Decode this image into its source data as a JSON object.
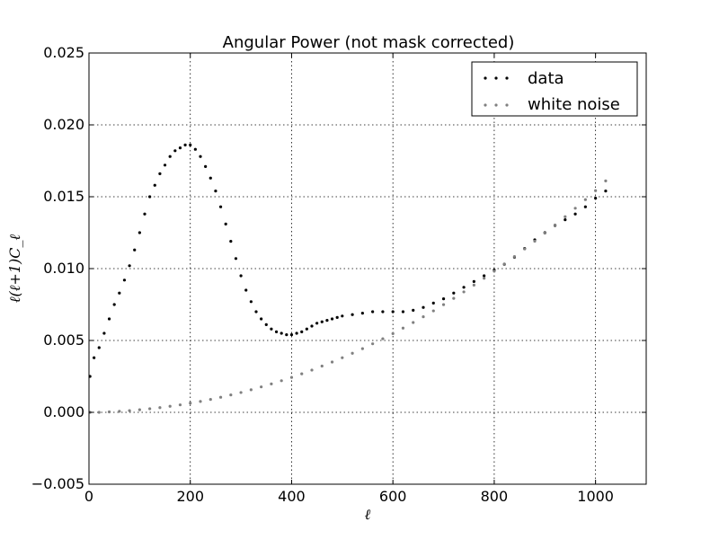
{
  "chart_data": {
    "type": "scatter",
    "title": "Angular Power (not mask corrected)",
    "xlabel": "ℓ",
    "ylabel": "ℓ(ℓ+1)C_ℓ",
    "xlim": [
      0,
      1100
    ],
    "ylim": [
      -0.005,
      0.025
    ],
    "xticks": [
      "0",
      "200",
      "400",
      "600",
      "800",
      "1000"
    ],
    "yticks": [
      "−0.005",
      "0.000",
      "0.005",
      "0.010",
      "0.015",
      "0.020",
      "0.025"
    ],
    "grid": true,
    "legend": {
      "location": "top-right"
    },
    "series": [
      {
        "name": "data",
        "color": "#000000",
        "x": [
          2,
          10,
          20,
          30,
          40,
          50,
          60,
          70,
          80,
          90,
          100,
          110,
          120,
          130,
          140,
          150,
          160,
          170,
          180,
          190,
          200,
          210,
          220,
          230,
          240,
          250,
          260,
          270,
          280,
          290,
          300,
          310,
          320,
          330,
          340,
          350,
          360,
          370,
          380,
          390,
          400,
          410,
          420,
          430,
          440,
          450,
          460,
          470,
          480,
          490,
          500,
          520,
          540,
          560,
          580,
          600,
          620,
          640,
          660,
          680,
          700,
          720,
          740,
          760,
          780,
          800,
          820,
          840,
          860,
          880,
          900,
          920,
          940,
          960,
          980,
          1000,
          1020
        ],
        "y": [
          0.0025,
          0.0038,
          0.0045,
          0.0055,
          0.0065,
          0.0075,
          0.0083,
          0.0092,
          0.0102,
          0.0113,
          0.0125,
          0.0138,
          0.015,
          0.0158,
          0.0166,
          0.0172,
          0.0178,
          0.0182,
          0.0184,
          0.0186,
          0.0186,
          0.0183,
          0.0178,
          0.0171,
          0.0163,
          0.0154,
          0.0143,
          0.0131,
          0.0119,
          0.0107,
          0.0095,
          0.0085,
          0.0077,
          0.007,
          0.0065,
          0.0061,
          0.0058,
          0.0056,
          0.0055,
          0.0054,
          0.0054,
          0.0055,
          0.0056,
          0.0058,
          0.006,
          0.0062,
          0.0063,
          0.0064,
          0.0065,
          0.0066,
          0.0067,
          0.0068,
          0.0069,
          0.007,
          0.007,
          0.007,
          0.007,
          0.0071,
          0.0073,
          0.0076,
          0.0079,
          0.0083,
          0.0087,
          0.0091,
          0.0095,
          0.0099,
          0.0103,
          0.0108,
          0.0114,
          0.012,
          0.0125,
          0.013,
          0.0134,
          0.0138,
          0.0143,
          0.0149,
          0.0154
        ]
      },
      {
        "name": "white noise",
        "color": "#808080",
        "x": [
          2,
          20,
          40,
          60,
          80,
          100,
          120,
          140,
          160,
          180,
          200,
          220,
          240,
          260,
          280,
          300,
          320,
          340,
          360,
          380,
          400,
          420,
          440,
          460,
          480,
          500,
          520,
          540,
          560,
          580,
          600,
          620,
          640,
          660,
          680,
          700,
          720,
          740,
          760,
          780,
          800,
          820,
          840,
          860,
          880,
          900,
          920,
          940,
          960,
          980,
          1000,
          1020
        ],
        "y": [
          0.0,
          0.0,
          3e-05,
          7e-05,
          0.00012,
          0.00018,
          0.00025,
          0.00033,
          0.00042,
          0.00052,
          0.00064,
          0.00076,
          0.0009,
          0.00105,
          0.00121,
          0.00138,
          0.00157,
          0.00177,
          0.00198,
          0.0022,
          0.00243,
          0.00268,
          0.00294,
          0.00322,
          0.0035,
          0.0038,
          0.00411,
          0.00443,
          0.00477,
          0.00512,
          0.00548,
          0.00586,
          0.00625,
          0.00665,
          0.00706,
          0.00749,
          0.00793,
          0.00838,
          0.00885,
          0.00933,
          0.00982,
          0.01032,
          0.01084,
          0.01137,
          0.01191,
          0.01247,
          0.01303,
          0.01361,
          0.0142,
          0.0148,
          0.01542,
          0.0161
        ]
      }
    ]
  }
}
